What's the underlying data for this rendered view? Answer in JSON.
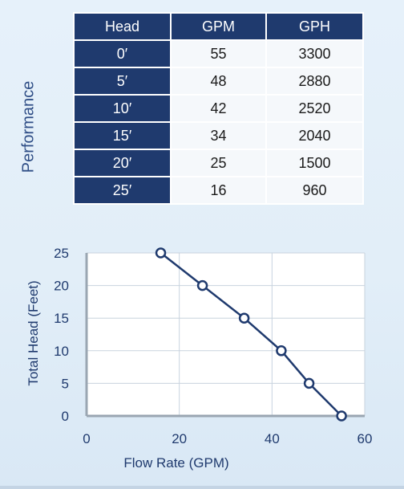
{
  "side_label": "Performance",
  "table": {
    "headers": [
      "Head",
      "GPM",
      "GPH"
    ],
    "rows": [
      [
        "0′",
        "55",
        "3300"
      ],
      [
        "5′",
        "48",
        "2880"
      ],
      [
        "10′",
        "42",
        "2520"
      ],
      [
        "15′",
        "34",
        "2040"
      ],
      [
        "20′",
        "25",
        "1500"
      ],
      [
        "25′",
        "16",
        "960"
      ]
    ]
  },
  "chart_data": {
    "type": "line",
    "xlabel": "Flow Rate (GPM)",
    "ylabel": "Total Head (Feet)",
    "xlim": [
      0,
      60
    ],
    "ylim": [
      0,
      25
    ],
    "xticks": [
      "0",
      "20",
      "40",
      "60"
    ],
    "yticks": [
      "0",
      "5",
      "10",
      "15",
      "20",
      "25"
    ],
    "grid": true,
    "series": [
      {
        "x": [
          55,
          48,
          42,
          34,
          25,
          16
        ],
        "y": [
          0,
          5,
          10,
          15,
          20,
          25
        ]
      }
    ],
    "colors": {
      "line": "#1f3a6e",
      "marker_fill": "#ffffff",
      "grid": "#c8d3de",
      "axis": "#9aa6b2",
      "text": "#1f3a6e"
    }
  }
}
